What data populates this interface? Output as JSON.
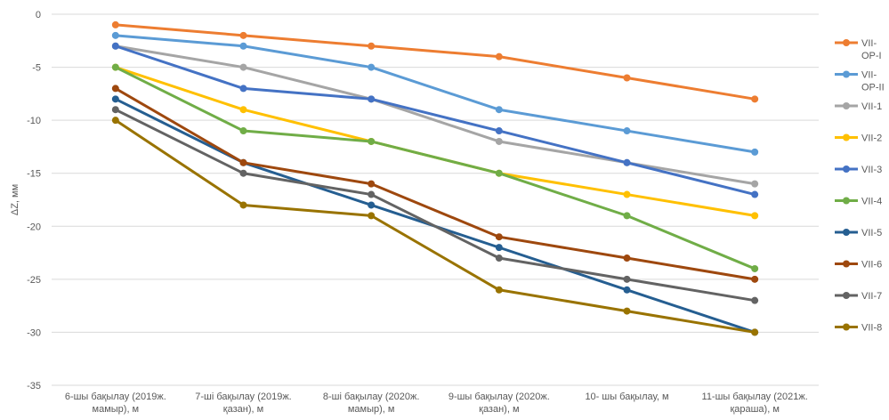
{
  "chart_data": {
    "type": "line",
    "title": "",
    "xlabel": "",
    "ylabel": "ΔZ, мм",
    "ylim": [
      -35,
      0
    ],
    "yticks": [
      0,
      -5,
      -10,
      -15,
      -20,
      -25,
      -30,
      -35
    ],
    "grid": "horizontal",
    "legend_position": "right",
    "categories": [
      [
        "6-шы бақылау (2019ж.",
        "мамыр), м"
      ],
      [
        "7-ші бақылау (2019ж.",
        "қазан), м"
      ],
      [
        "8-ші бақылау (2020ж.",
        "мамыр), м"
      ],
      [
        "9-шы бақылау (2020ж.",
        "қазан), м"
      ],
      [
        "10- шы бақылау, м"
      ],
      [
        "11-шы бақылау (2021ж.",
        "қараша), м"
      ]
    ],
    "series": [
      {
        "name": [
          "VII-",
          "OP-I"
        ],
        "color": "#ED7D31",
        "values": [
          -1,
          -2,
          -3,
          -4,
          -6,
          -8
        ]
      },
      {
        "name": [
          "VII-",
          "OP-II"
        ],
        "color": "#5B9BD5",
        "values": [
          -2,
          -3,
          -5,
          -9,
          -11,
          -13
        ]
      },
      {
        "name": [
          "VII-1"
        ],
        "color": "#A5A5A5",
        "values": [
          -3,
          -5,
          -8,
          -12,
          -14,
          -16
        ]
      },
      {
        "name": [
          "VII-2"
        ],
        "color": "#FFC000",
        "values": [
          -5,
          -9,
          -12,
          -15,
          -17,
          -19
        ]
      },
      {
        "name": [
          "VII-3"
        ],
        "color": "#4472C4",
        "values": [
          -3,
          -7,
          -8,
          -11,
          -14,
          -17
        ]
      },
      {
        "name": [
          "VII-4"
        ],
        "color": "#70AD47",
        "values": [
          -5,
          -11,
          -12,
          -15,
          -19,
          -24
        ]
      },
      {
        "name": [
          "VII-5"
        ],
        "color": "#255E91",
        "values": [
          -8,
          -14,
          -18,
          -22,
          -26,
          -30
        ]
      },
      {
        "name": [
          "VII-6"
        ],
        "color": "#9E480E",
        "values": [
          -7,
          -14,
          -16,
          -21,
          -23,
          -25
        ]
      },
      {
        "name": [
          "VII-7"
        ],
        "color": "#636363",
        "values": [
          -9,
          -15,
          -17,
          -23,
          -25,
          -27
        ]
      },
      {
        "name": [
          "VII-8"
        ],
        "color": "#997300",
        "values": [
          -10,
          -18,
          -19,
          -26,
          -28,
          -30
        ]
      }
    ]
  }
}
